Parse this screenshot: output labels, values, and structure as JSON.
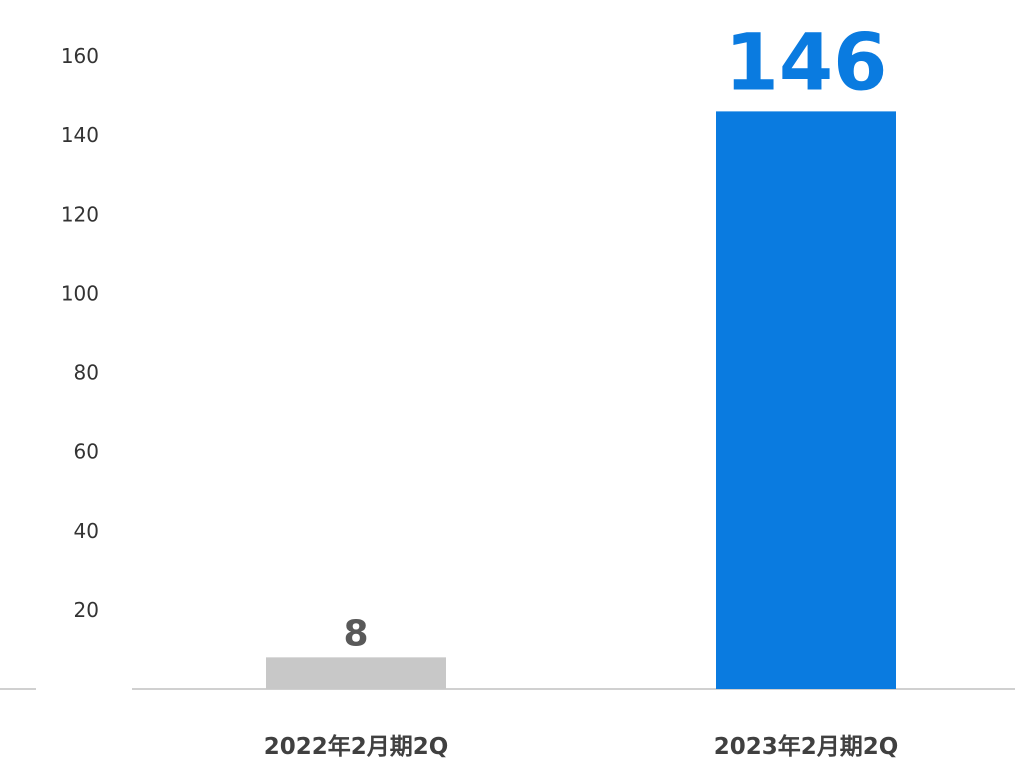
{
  "chart_data": {
    "type": "bar",
    "categories": [
      "2022年2月期2Q",
      "2023年2月期2Q"
    ],
    "values": [
      8,
      146
    ],
    "data_labels": [
      "8",
      "146"
    ],
    "title": "",
    "xlabel": "",
    "ylabel": "",
    "ylim": [
      0,
      160
    ],
    "yticks": [
      0,
      20,
      40,
      60,
      80,
      100,
      120,
      140,
      160
    ],
    "grid": false,
    "legend": "none",
    "colors": [
      "#c8c8c8",
      "#0a7be0"
    ],
    "label_colors": [
      "#595959",
      "#0a7be0"
    ]
  }
}
